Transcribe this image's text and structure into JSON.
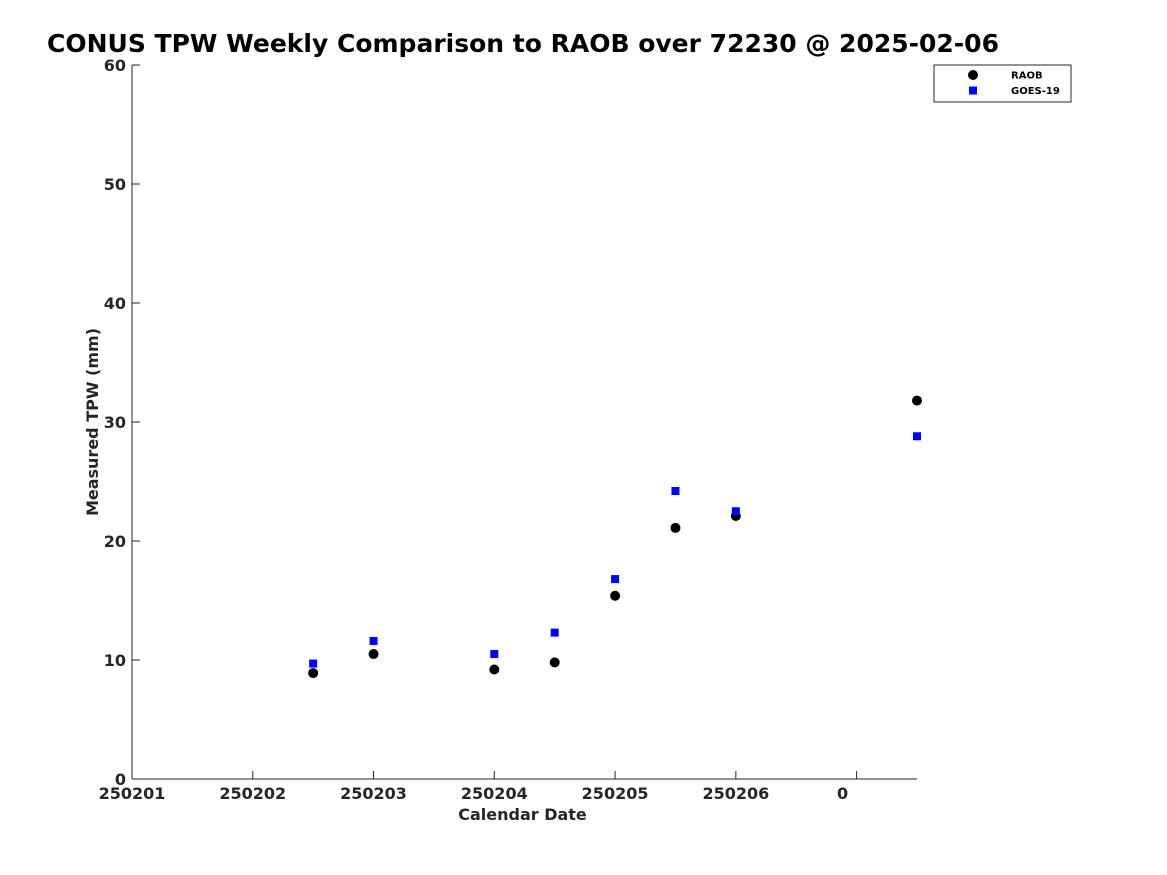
{
  "chart_data": {
    "type": "scatter",
    "title": "CONUS TPW Weekly Comparison to RAOB over 72230 @ 2025-02-06",
    "xlabel": "Calendar Date",
    "ylabel": "Measured TPW (mm)",
    "xlim": [
      0,
      6.5
    ],
    "ylim": [
      0,
      60
    ],
    "x_ticks": [
      0,
      1,
      2,
      3,
      4,
      5,
      6
    ],
    "x_tick_labels": [
      "250201",
      "250202",
      "250203",
      "250204",
      "250205",
      "250206",
      "0"
    ],
    "y_ticks": [
      0,
      10,
      20,
      30,
      40,
      50,
      60
    ],
    "y_tick_labels": [
      "0",
      "10",
      "20",
      "30",
      "40",
      "50",
      "60"
    ],
    "legend_position": "top-right",
    "grid": false,
    "series": [
      {
        "name": "RAOB",
        "marker": "circle",
        "color": "#000000",
        "x": [
          1.5,
          2.0,
          3.0,
          3.5,
          4.0,
          4.5,
          5.0,
          6.5
        ],
        "y": [
          8.9,
          10.5,
          9.2,
          9.8,
          15.4,
          21.1,
          22.1,
          31.8
        ]
      },
      {
        "name": "GOES-19",
        "marker": "square",
        "color": "#0000ff",
        "x": [
          1.5,
          2.0,
          3.0,
          3.5,
          4.0,
          4.5,
          5.0,
          6.5
        ],
        "y": [
          9.7,
          11.6,
          10.5,
          12.3,
          16.8,
          24.2,
          22.5,
          28.8
        ]
      }
    ]
  }
}
